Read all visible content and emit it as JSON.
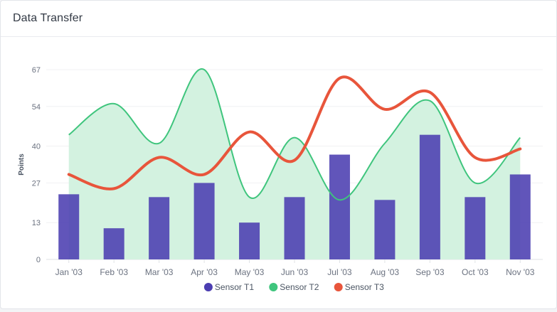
{
  "card": {
    "title": "Data Transfer"
  },
  "chart_data": {
    "type": "bar",
    "title": "",
    "xlabel": "",
    "ylabel": "Points",
    "categories": [
      "Jan '03",
      "Feb '03",
      "Mar '03",
      "Apr '03",
      "May '03",
      "Jun '03",
      "Jul '03",
      "Aug '03",
      "Sep '03",
      "Oct '03",
      "Nov '03"
    ],
    "y_ticks": [
      0,
      13,
      27,
      40,
      54,
      67
    ],
    "ylim": [
      0,
      67
    ],
    "grid": true,
    "legend_position": "bottom-center",
    "series": [
      {
        "name": "Sensor T1",
        "kind": "bar",
        "color": "#4b3db1",
        "values": [
          23,
          11,
          22,
          27,
          13,
          22,
          37,
          21,
          44,
          22,
          30
        ]
      },
      {
        "name": "Sensor T2",
        "kind": "area",
        "color": "#3fc57d",
        "fill": "#d3f2e0",
        "values": [
          44,
          55,
          41,
          67,
          22,
          43,
          21,
          41,
          56,
          27,
          43
        ]
      },
      {
        "name": "Sensor T3",
        "kind": "line",
        "color": "#e8553b",
        "values": [
          30,
          25,
          36,
          30,
          45,
          35,
          64,
          53,
          59,
          36,
          39
        ]
      }
    ]
  }
}
